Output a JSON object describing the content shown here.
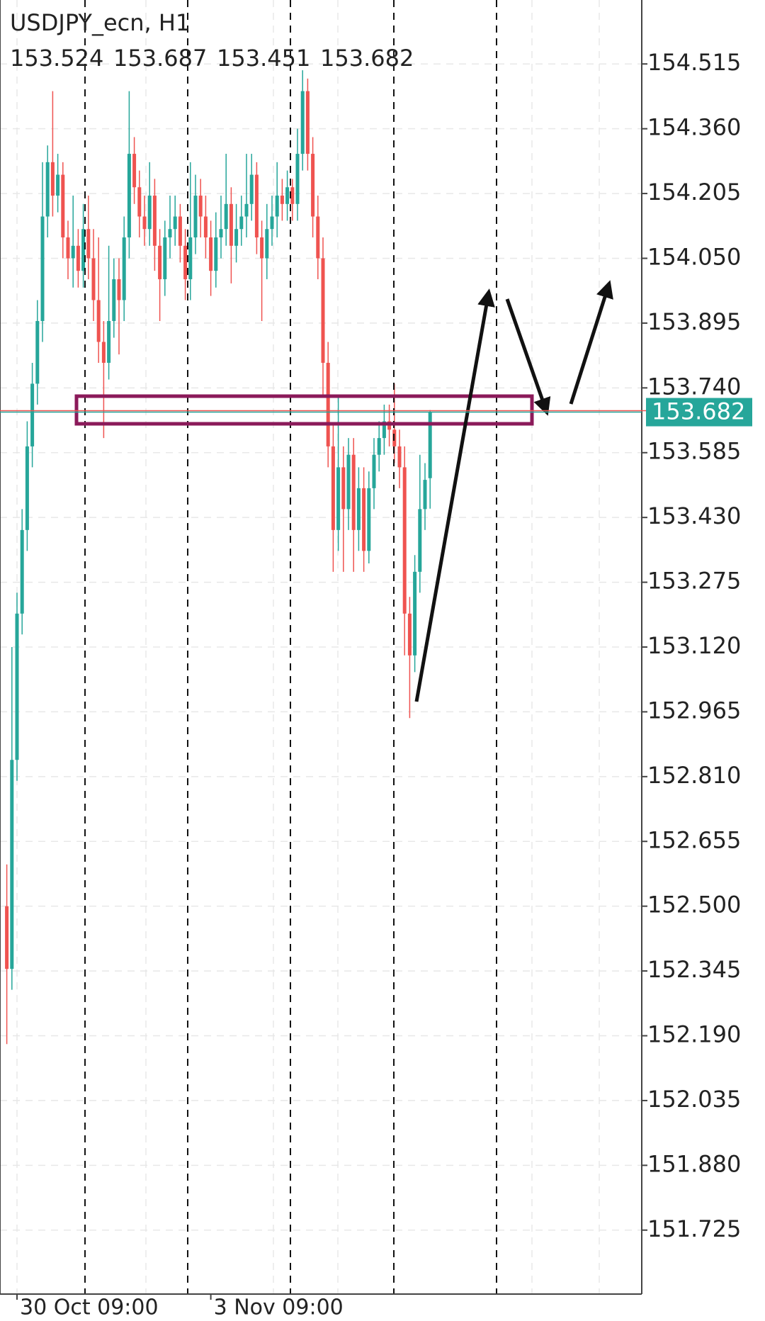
{
  "chart_data": {
    "type": "candlestick",
    "title": "USDJPY_ecn, H1",
    "ohlc_values": [
      153.524,
      153.687,
      153.451,
      153.682
    ],
    "last_price": 153.682,
    "up_color": "#26a69a",
    "down_color": "#ef5350",
    "ylim": [
      151.572,
      154.668
    ],
    "yticks": [
      {
        "value": 151.725,
        "label": "151.725"
      },
      {
        "value": 151.88,
        "label": "151.880"
      },
      152.035,
      {
        "value": 152.19,
        "label": "152.190"
      },
      152.345,
      {
        "value": 152.5,
        "label": "152.500"
      },
      152.655,
      {
        "value": 152.81,
        "label": "152.810"
      },
      152.965,
      {
        "value": 153.12,
        "label": "153.120"
      },
      153.275,
      {
        "value": 153.43,
        "label": "153.430"
      },
      153.585,
      {
        "value": 153.74,
        "label": "153.740"
      },
      153.895,
      {
        "value": 154.05,
        "label": "154.050"
      },
      154.205,
      {
        "value": 154.36,
        "label": "154.360"
      },
      154.515
    ],
    "categories": [
      null,
      null,
      "30 Oct 09:00",
      null,
      null,
      null,
      null,
      null,
      null,
      null,
      null,
      null,
      null,
      null,
      null,
      null,
      null,
      null,
      null,
      null,
      null,
      null,
      null,
      null,
      null,
      null,
      null,
      null,
      null,
      null,
      null,
      null,
      null,
      null,
      null,
      null,
      null,
      null,
      null,
      null,
      "3 Nov 09:00",
      null,
      null,
      null,
      null,
      null,
      null,
      null,
      null,
      null,
      null,
      null,
      null,
      null,
      null,
      null,
      null,
      null,
      null,
      null,
      null,
      null,
      null,
      null,
      null,
      null,
      null,
      null,
      null,
      null,
      null,
      null,
      null,
      null,
      null,
      null,
      null,
      null,
      null,
      null,
      null,
      null,
      null,
      null
    ],
    "open": [
      152.5,
      152.35,
      152.85,
      153.2,
      153.4,
      153.6,
      153.75,
      153.9,
      154.15,
      154.28,
      154.2,
      154.25,
      154.1,
      154.05,
      154.08,
      154.02,
      154.12,
      154.05,
      153.95,
      153.85,
      153.8,
      153.9,
      154.0,
      153.95,
      154.1,
      154.3,
      154.22,
      154.15,
      154.12,
      154.2,
      154.08,
      154.0,
      154.1,
      154.12,
      154.15,
      154.08,
      154.0,
      154.1,
      154.2,
      154.15,
      154.1,
      154.02,
      154.1,
      154.12,
      154.18,
      154.08,
      154.12,
      154.15,
      154.18,
      154.25,
      154.1,
      154.05,
      154.12,
      154.15,
      154.2,
      154.18,
      154.22,
      154.18,
      154.3,
      154.45,
      154.3,
      154.15,
      154.05,
      153.8,
      153.6,
      153.4,
      153.55,
      153.45,
      153.58,
      153.4,
      153.5,
      153.35,
      153.5,
      153.58,
      153.62,
      153.66,
      153.64,
      153.6,
      153.55,
      153.2,
      153.1,
      153.3,
      153.45,
      153.524
    ],
    "high": [
      152.6,
      153.12,
      153.25,
      153.45,
      153.66,
      153.8,
      153.95,
      154.28,
      154.32,
      154.45,
      154.3,
      154.28,
      154.14,
      154.2,
      154.12,
      154.18,
      154.2,
      154.12,
      154.1,
      153.9,
      154.08,
      154.05,
      154.05,
      154.15,
      154.45,
      154.34,
      154.26,
      154.2,
      154.28,
      154.24,
      154.12,
      154.14,
      154.2,
      154.2,
      154.18,
      154.12,
      154.28,
      154.25,
      154.24,
      154.2,
      154.14,
      154.16,
      154.2,
      154.3,
      154.22,
      154.18,
      154.2,
      154.3,
      154.3,
      154.28,
      154.14,
      154.18,
      154.2,
      154.28,
      154.24,
      154.26,
      154.24,
      154.36,
      154.5,
      154.48,
      154.34,
      154.2,
      154.1,
      153.85,
      153.65,
      153.72,
      153.6,
      153.62,
      153.62,
      153.55,
      153.55,
      153.54,
      153.62,
      153.66,
      153.7,
      153.7,
      153.75,
      153.64,
      153.6,
      153.24,
      153.34,
      153.58,
      153.56,
      153.687
    ],
    "low": [
      152.17,
      152.3,
      152.8,
      153.15,
      153.35,
      153.55,
      153.7,
      153.85,
      154.1,
      154.15,
      154.16,
      154.05,
      154.0,
      153.98,
      153.98,
      153.98,
      154.0,
      153.9,
      153.8,
      153.62,
      153.76,
      153.86,
      153.82,
      153.9,
      154.05,
      154.18,
      154.1,
      154.08,
      154.08,
      154.02,
      153.9,
      153.96,
      154.05,
      154.08,
      154.04,
      153.95,
      153.95,
      154.06,
      154.1,
      154.05,
      153.96,
      153.98,
      154.05,
      154.08,
      153.99,
      154.04,
      154.08,
      154.1,
      154.14,
      154.06,
      153.9,
      154.0,
      154.08,
      154.1,
      154.14,
      154.14,
      154.14,
      154.14,
      154.26,
      154.26,
      154.1,
      154.0,
      153.72,
      153.55,
      153.3,
      153.35,
      153.3,
      153.4,
      153.3,
      153.35,
      153.3,
      153.32,
      153.45,
      153.54,
      153.58,
      153.6,
      153.56,
      153.5,
      153.1,
      152.95,
      153.06,
      153.25,
      153.4,
      153.451
    ],
    "close": [
      152.35,
      152.85,
      153.2,
      153.4,
      153.6,
      153.75,
      153.9,
      154.15,
      154.28,
      154.2,
      154.25,
      154.1,
      154.05,
      154.08,
      154.02,
      154.12,
      154.05,
      153.95,
      153.85,
      153.8,
      153.9,
      154.0,
      153.95,
      154.1,
      154.3,
      154.22,
      154.15,
      154.12,
      154.2,
      154.08,
      154.0,
      154.1,
      154.12,
      154.15,
      154.08,
      154.0,
      154.1,
      154.2,
      154.15,
      154.1,
      154.02,
      154.1,
      154.12,
      154.18,
      154.08,
      154.12,
      154.15,
      154.18,
      154.25,
      154.1,
      154.05,
      154.12,
      154.15,
      154.2,
      154.18,
      154.22,
      154.18,
      154.3,
      154.45,
      154.3,
      154.15,
      154.05,
      153.8,
      153.6,
      153.4,
      153.55,
      153.45,
      153.58,
      153.4,
      153.5,
      153.35,
      153.5,
      153.58,
      153.62,
      153.66,
      153.64,
      153.6,
      153.55,
      153.2,
      153.1,
      153.3,
      153.45,
      153.52,
      153.682
    ]
  }
}
